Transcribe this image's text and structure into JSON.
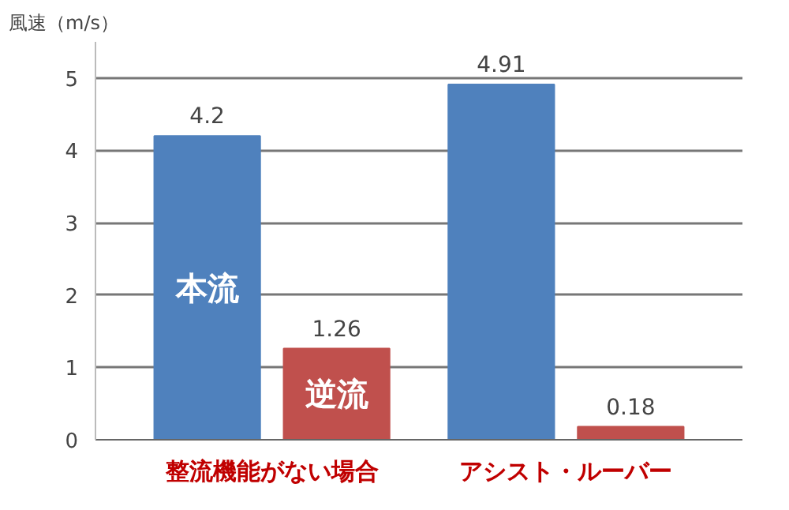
{
  "chart_data": {
    "type": "bar",
    "ylabel": "風速（m/s）",
    "categories": [
      "整流機能がない場合",
      "アシスト・ルーバー"
    ],
    "series": [
      {
        "name": "本流",
        "color": "#4f81bd",
        "values": [
          4.2,
          4.91
        ]
      },
      {
        "name": "逆流",
        "color": "#c0504d",
        "values": [
          1.26,
          0.18
        ]
      }
    ],
    "ylim": [
      0,
      5.5
    ],
    "yticks": [
      0,
      1,
      2,
      3,
      4,
      5
    ],
    "grid": "y",
    "data_labels": true
  }
}
